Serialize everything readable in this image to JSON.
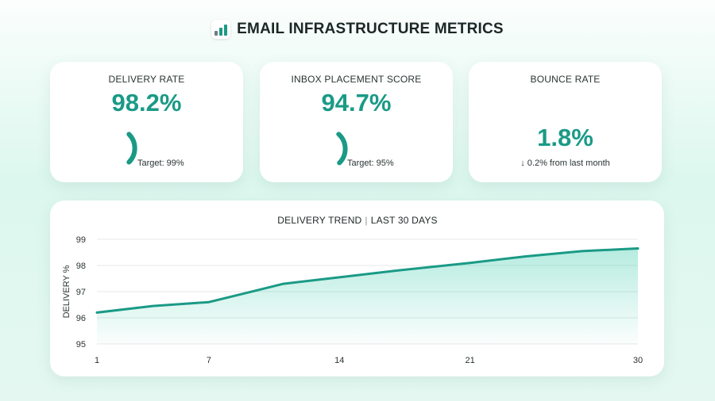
{
  "header": {
    "title": "EMAIL INFRASTRUCTURE METRICS",
    "icon": "bar-chart-icon"
  },
  "kpis": {
    "delivery": {
      "label": "DELIVERY RATE",
      "value": "98.2%",
      "target": "Target: 99%",
      "fill": 0.982
    },
    "inbox": {
      "label": "INBOX PLACEMENT SCORE",
      "value": "94.7%",
      "target": "Target: 95%",
      "fill": 0.947
    },
    "bounce": {
      "label": "BOUNCE RATE",
      "value": "1.8%",
      "change": "↓ 0.2% from last month"
    }
  },
  "colors": {
    "accent": "#1a9a86",
    "text": "#1d2626",
    "grid": "#e3e8e7"
  },
  "chart_data": {
    "type": "area",
    "title": "DELIVERY TREND",
    "title_sep": "|",
    "subtitle": "LAST 30 DAYS",
    "ylabel": "DELIVERY %",
    "xlabel": "",
    "xlim": [
      1,
      30
    ],
    "ylim": [
      95,
      99
    ],
    "xticks": [
      1,
      7,
      14,
      21,
      30
    ],
    "yticks": [
      95,
      96,
      97,
      98,
      99
    ],
    "grid": true,
    "series": [
      {
        "x": [
          1,
          4,
          7,
          9,
          11,
          14,
          17,
          21,
          24,
          27,
          30
        ],
        "y": [
          96.2,
          96.45,
          96.6,
          96.95,
          97.3,
          97.55,
          97.8,
          98.1,
          98.35,
          98.55,
          98.65
        ]
      }
    ]
  }
}
